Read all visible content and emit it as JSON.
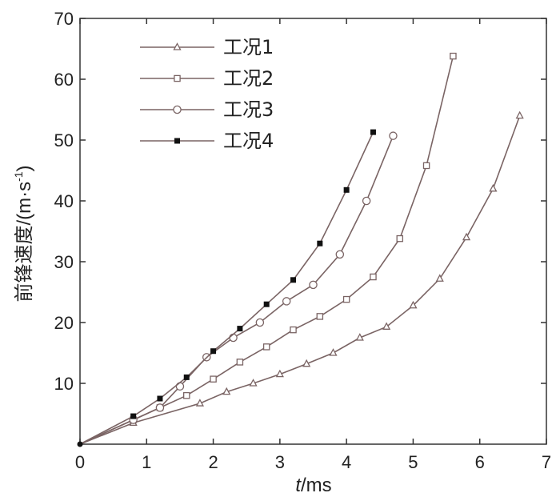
{
  "chart_data": {
    "type": "line",
    "xlabel_var": "t",
    "xlabel_unit": "/ms",
    "ylabel": "前锋速度/(m·s",
    "ylabel_sup": "-1",
    "ylabel_close": ")",
    "xlim": [
      0,
      7
    ],
    "ylim": [
      0,
      70
    ],
    "xticks": [
      0,
      1,
      2,
      3,
      4,
      5,
      6,
      7
    ],
    "yticks": [
      10,
      20,
      30,
      40,
      50,
      60,
      70
    ],
    "grid": false,
    "legend_position": "top-left",
    "colors": {
      "line": "#7a6464",
      "marker_fill": "#111111",
      "axis": "#333333"
    },
    "series": [
      {
        "name": "工况1",
        "marker": "triangle",
        "x": [
          0,
          0.8,
          1.8,
          2.2,
          2.6,
          3.0,
          3.4,
          3.8,
          4.2,
          4.6,
          5.0,
          5.4,
          5.8,
          6.2,
          6.6
        ],
        "y": [
          0,
          3.5,
          6.7,
          8.6,
          10.0,
          11.5,
          13.2,
          15.0,
          17.5,
          19.3,
          22.8,
          27.2,
          34.0,
          42.0,
          54.0
        ]
      },
      {
        "name": "工况2",
        "marker": "square-open",
        "x": [
          0,
          0.8,
          1.2,
          1.6,
          2.0,
          2.4,
          2.8,
          3.2,
          3.6,
          4.0,
          4.4,
          4.8,
          5.2,
          5.6
        ],
        "y": [
          0,
          4.0,
          6.0,
          8.0,
          10.7,
          13.5,
          16.0,
          18.8,
          21.0,
          23.8,
          27.5,
          33.8,
          45.8,
          63.8
        ]
      },
      {
        "name": "工况3",
        "marker": "circle-open",
        "x": [
          0,
          0.8,
          1.2,
          1.5,
          1.9,
          2.3,
          2.7,
          3.1,
          3.5,
          3.9,
          4.3,
          4.7
        ],
        "y": [
          0,
          4.0,
          6.0,
          9.5,
          14.3,
          17.5,
          20.0,
          23.5,
          26.2,
          31.2,
          40.0,
          50.7
        ]
      },
      {
        "name": "工况4",
        "marker": "square-filled",
        "x": [
          0,
          0.8,
          1.2,
          1.6,
          2.0,
          2.4,
          2.8,
          3.2,
          3.6,
          4.0,
          4.4
        ],
        "y": [
          0,
          4.6,
          7.5,
          11.0,
          15.3,
          19.0,
          23.0,
          27.0,
          33.0,
          41.8,
          51.3
        ]
      }
    ]
  }
}
